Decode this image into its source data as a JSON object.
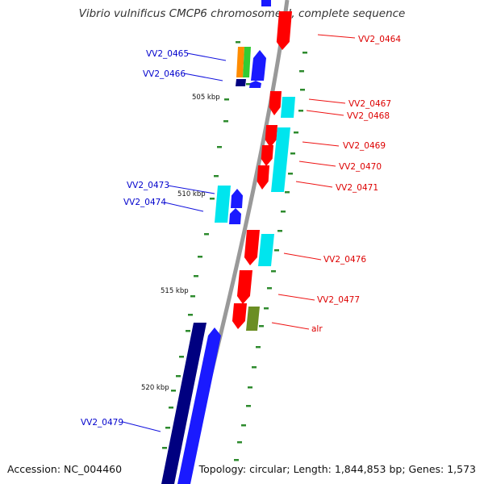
{
  "title": "Vibrio vulnificus CMCP6 chromosome II, complete sequence",
  "footer": {
    "accession": "Accession: NC_004460",
    "topology": "Topology: circular; Length: 1,844,853 bp; Genes: 1,573"
  },
  "colors": {
    "backbone": "#999999",
    "dot": "#2e8b2e",
    "leading_label": "#dd0000",
    "lagging_label": "#0000cc",
    "red": "#ff0000",
    "cyan": "#00e5ee",
    "blue": "#1a1aff",
    "navy": "#000080",
    "orange": "#ff8c00",
    "green": "#33cc33",
    "olive": "#6b8e23"
  },
  "scale_ticks": [
    "505 kbp",
    "510 kbp",
    "515 kbp",
    "520 kbp"
  ],
  "gene_labels": {
    "leading": [
      "VV2_0464",
      "VV2_0467",
      "VV2_0468",
      "VV2_0469",
      "VV2_0470",
      "VV2_0471",
      "VV2_0476",
      "VV2_0477",
      "alr"
    ],
    "lagging": [
      "VV2_0465",
      "VV2_0466",
      "VV2_0473",
      "VV2_0474",
      "VV2_0479"
    ]
  }
}
